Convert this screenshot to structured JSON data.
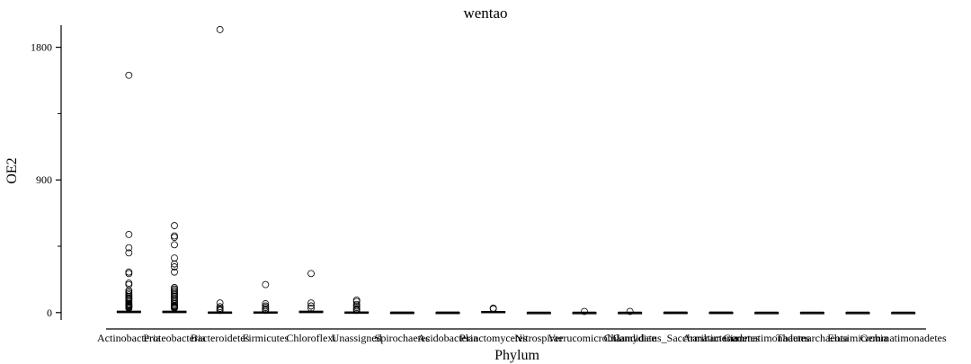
{
  "chart_data": {
    "type": "boxplot",
    "title": "wentao",
    "xlabel": "Phylum",
    "ylabel": "OE2",
    "ylim": [
      -50,
      1950
    ],
    "yticks": [
      0,
      900,
      1800
    ],
    "ymajor_labeled": [
      0,
      900,
      1800
    ],
    "yminor": [
      450,
      1350
    ],
    "categories": [
      "Actinobacteria",
      "Proteobacteria",
      "Bacteroidetes",
      "Firmicutes",
      "Chloroflexi",
      "Unassigned",
      "Spirochaetes",
      "Acidobacteria",
      "Planctomycetes",
      "Nitrospirae",
      "Verrucomicrobia",
      "Chlamydiae",
      "Candidatus_Saccharibacteria",
      "Armatimonadetes",
      "Gemmatimonadetes",
      "Thaumarchaeota",
      "Elusimicrobia",
      "Gemmatimonadetes"
    ],
    "boxes": [
      {
        "q1": 0,
        "median": 3,
        "q3": 10,
        "whisker_low": 0,
        "whisker_high": 25,
        "outliers": [
          1610,
          530,
          440,
          405,
          275,
          265,
          200,
          190,
          150,
          140,
          130,
          120,
          110,
          100,
          95,
          90,
          80,
          70,
          60,
          55,
          50,
          45,
          40,
          35,
          30
        ]
      },
      {
        "q1": 0,
        "median": 3,
        "q3": 10,
        "whisker_low": 0,
        "whisker_high": 22,
        "outliers": [
          590,
          520,
          510,
          460,
          370,
          330,
          310,
          275,
          170,
          160,
          150,
          140,
          130,
          120,
          110,
          100,
          90,
          80,
          70,
          60,
          50,
          45,
          40,
          35,
          30
        ]
      },
      {
        "q1": 0,
        "median": 1,
        "q3": 4,
        "whisker_low": 0,
        "whisker_high": 8,
        "outliers": [
          1920,
          65,
          40,
          30,
          20,
          15
        ]
      },
      {
        "q1": 0,
        "median": 1,
        "q3": 5,
        "whisker_low": 0,
        "whisker_high": 10,
        "outliers": [
          190,
          60,
          45,
          35,
          25,
          15
        ]
      },
      {
        "q1": 0,
        "median": 3,
        "q3": 10,
        "whisker_low": 0,
        "whisker_high": 20,
        "outliers": [
          265,
          65,
          45,
          30
        ]
      },
      {
        "q1": 0,
        "median": 1,
        "q3": 4,
        "whisker_low": 0,
        "whisker_high": 9,
        "outliers": [
          85,
          75,
          55,
          45,
          35,
          25,
          20,
          15
        ]
      },
      {
        "q1": 0,
        "median": 1,
        "q3": 2,
        "whisker_low": 0,
        "whisker_high": 3,
        "outliers": []
      },
      {
        "q1": 0,
        "median": 1,
        "q3": 2,
        "whisker_low": 0,
        "whisker_high": 3,
        "outliers": []
      },
      {
        "q1": 0,
        "median": 2,
        "q3": 8,
        "whisker_low": 0,
        "whisker_high": 12,
        "outliers": [
          30,
          25
        ]
      },
      {
        "q1": 0,
        "median": 0,
        "q3": 1,
        "whisker_low": 0,
        "whisker_high": 2,
        "outliers": []
      },
      {
        "q1": 0,
        "median": 0,
        "q3": 1,
        "whisker_low": 0,
        "whisker_high": 2,
        "outliers": [
          8
        ]
      },
      {
        "q1": 0,
        "median": 0,
        "q3": 1,
        "whisker_low": 0,
        "whisker_high": 2,
        "outliers": [
          8
        ]
      },
      {
        "q1": 0,
        "median": 1,
        "q3": 2,
        "whisker_low": 0,
        "whisker_high": 3,
        "outliers": []
      },
      {
        "q1": 0,
        "median": 1,
        "q3": 2,
        "whisker_low": 0,
        "whisker_high": 3,
        "outliers": []
      },
      {
        "q1": 0,
        "median": 0,
        "q3": 1,
        "whisker_low": 0,
        "whisker_high": 1,
        "outliers": []
      },
      {
        "q1": 0,
        "median": 0,
        "q3": 1,
        "whisker_low": 0,
        "whisker_high": 1,
        "outliers": []
      },
      {
        "q1": 0,
        "median": 0,
        "q3": 1,
        "whisker_low": 0,
        "whisker_high": 1,
        "outliers": []
      },
      {
        "q1": 0,
        "median": 0,
        "q3": 1,
        "whisker_low": 0,
        "whisker_high": 1,
        "outliers": []
      }
    ],
    "grid": false,
    "legend": "none",
    "colors": {
      "stroke": "#000000",
      "fill": "#ffffff",
      "background": "#ffffff"
    }
  }
}
